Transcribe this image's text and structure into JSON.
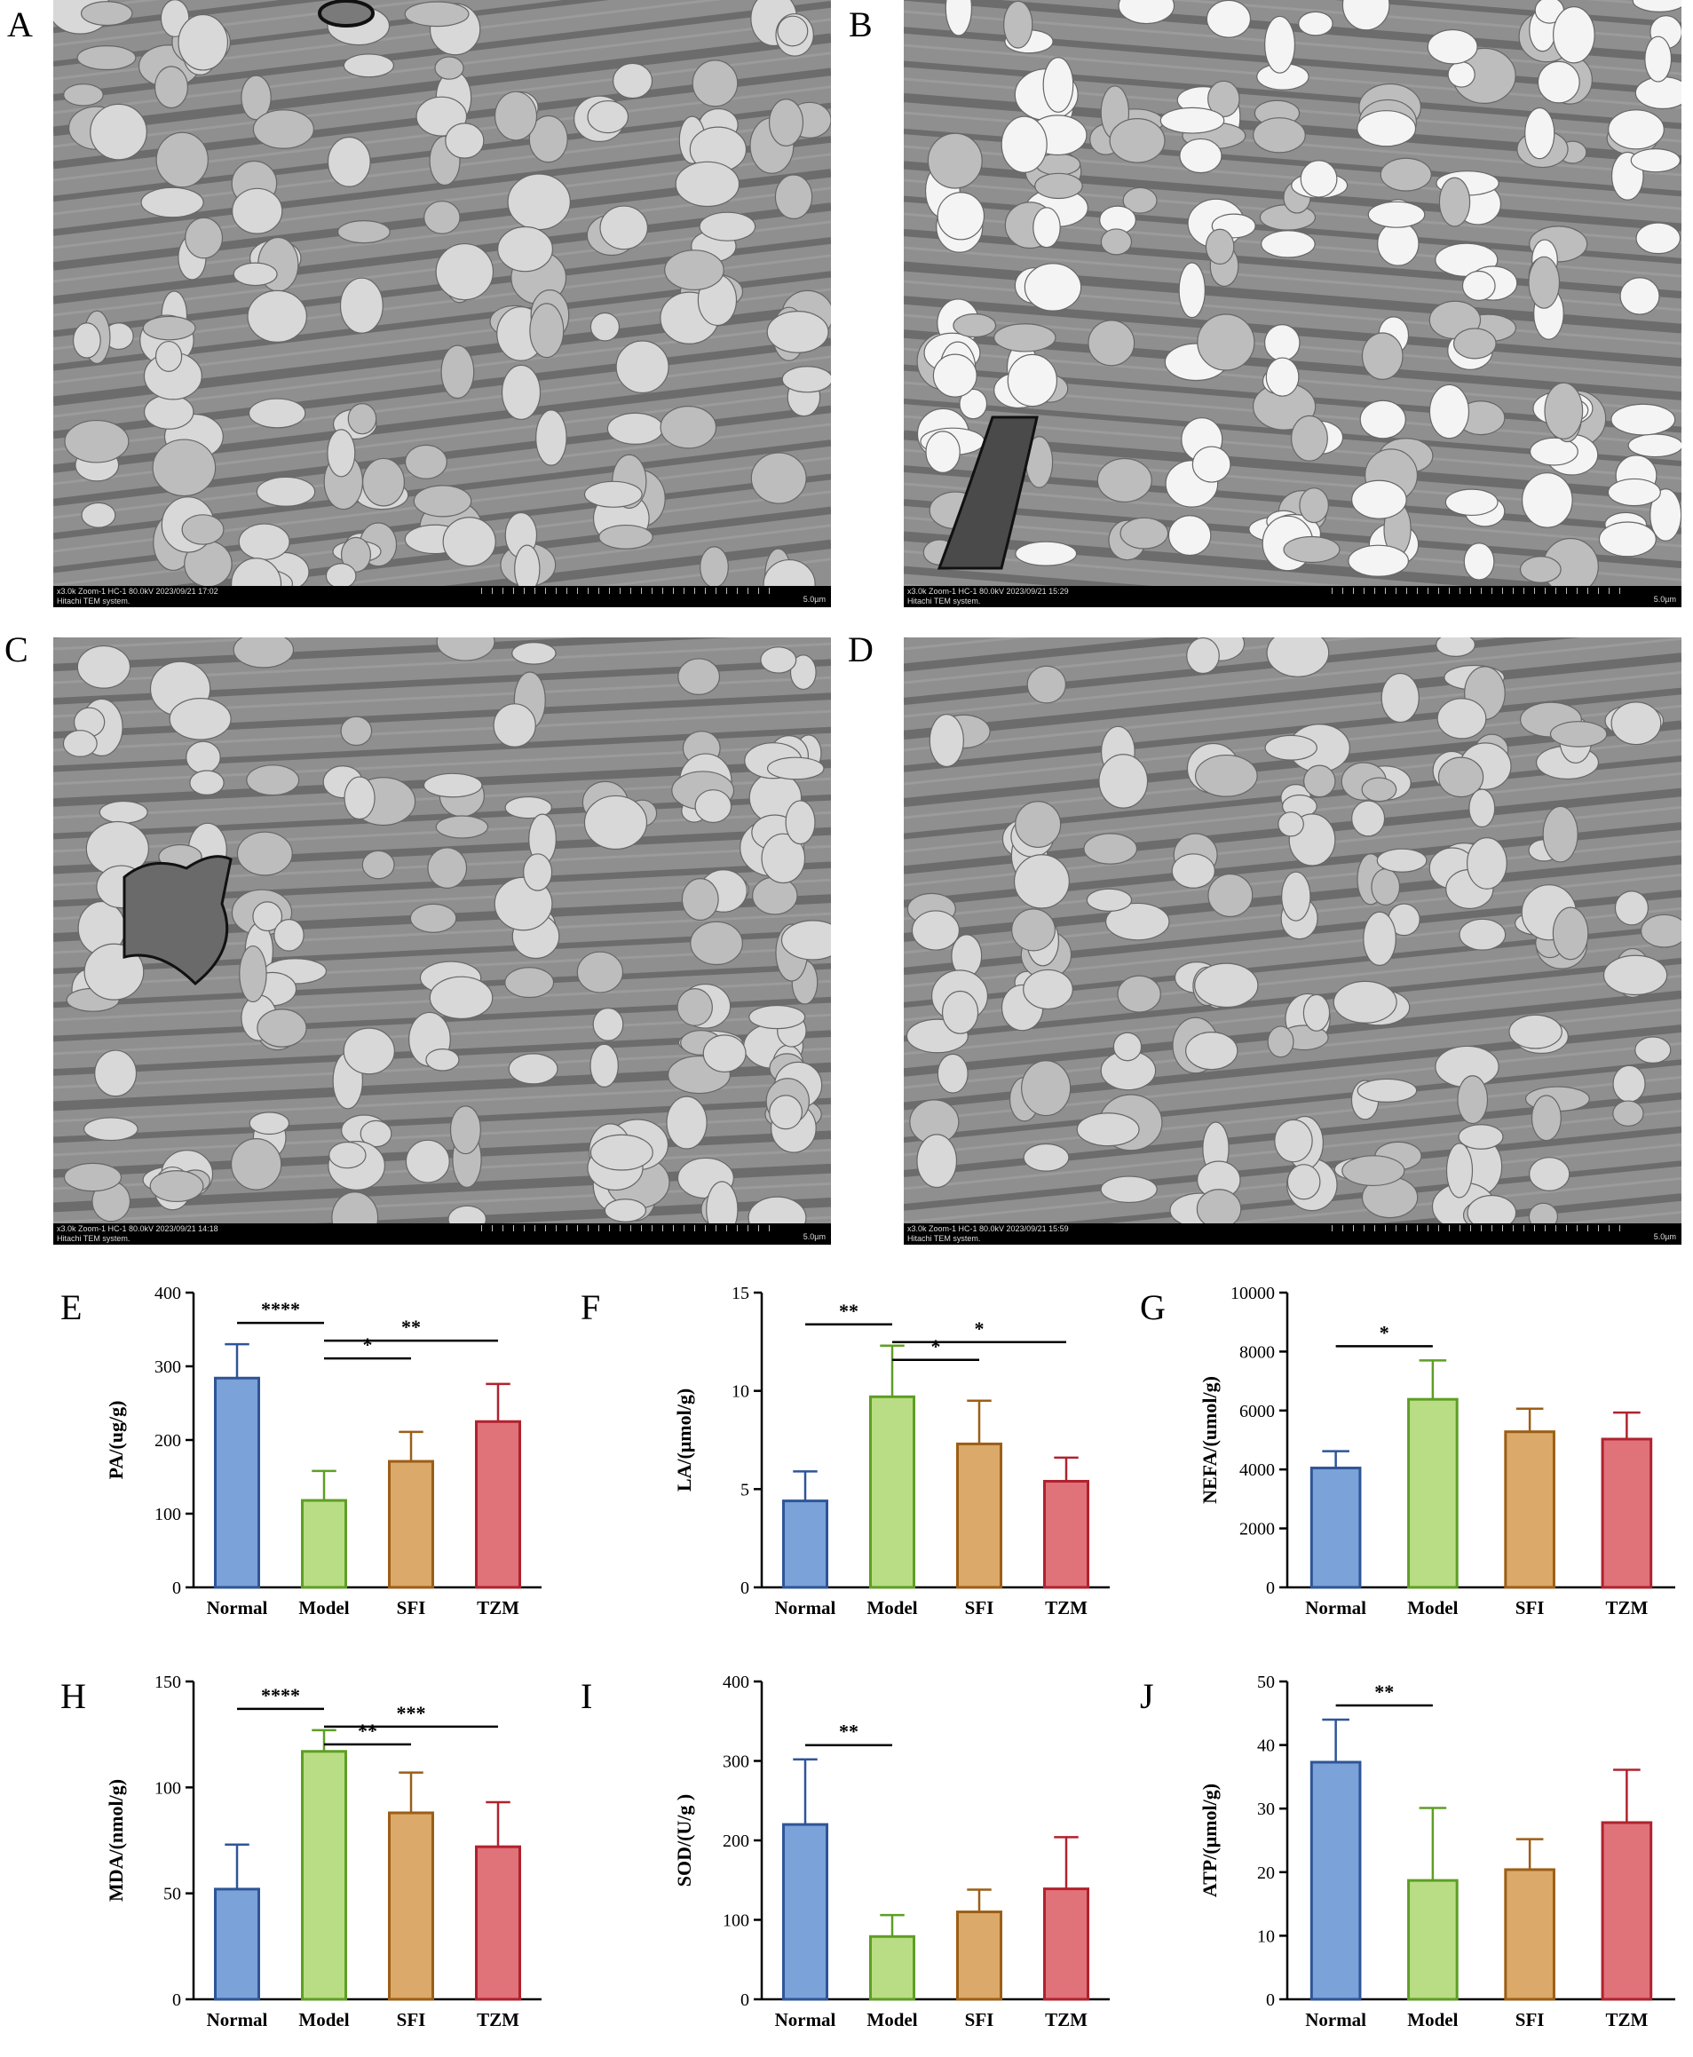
{
  "tem_panels": [
    {
      "letter": "A",
      "info": "x3.0k Zoom-1 HC-1 80.0kV 2023/09/21 17:02",
      "system": "Hitachi TEM system.",
      "scale": "5.0µm"
    },
    {
      "letter": "B",
      "info": "x3.0k Zoom-1 HC-1 80.0kV 2023/09/21 15:29",
      "system": "Hitachi TEM system.",
      "scale": "5.0µm"
    },
    {
      "letter": "C",
      "info": "x3.0k Zoom-1 HC-1 80.0kV 2023/09/21 14:18",
      "system": "Hitachi TEM system.",
      "scale": "5.0µm"
    },
    {
      "letter": "D",
      "info": "x3.0k Zoom-1 HC-1 80.0kV 2023/09/21 15:59",
      "system": "Hitachi TEM system.",
      "scale": "5.0µm"
    }
  ],
  "colors": {
    "Normal": {
      "fill": "#7ba2d9",
      "stroke": "#2f5597"
    },
    "Model": {
      "fill": "#b9dd84",
      "stroke": "#5e9e25"
    },
    "SFI": {
      "fill": "#dba96a",
      "stroke": "#9c5e16"
    },
    "TZM": {
      "fill": "#e0727a",
      "stroke": "#b0222e"
    }
  },
  "chart_data": [
    {
      "letter": "E",
      "type": "bar",
      "ylabel": "PA/(ug/g)",
      "ylim": [
        0,
        400
      ],
      "yticks": [
        0,
        100,
        200,
        300,
        400
      ],
      "categories": [
        "Normal",
        "Model",
        "SFI",
        "TZM"
      ],
      "values": [
        284,
        118,
        171,
        225
      ],
      "errors": [
        46,
        40,
        40,
        51
      ],
      "significance": [
        {
          "from": 0,
          "to": 1,
          "label": "****"
        },
        {
          "from": 1,
          "to": 2,
          "label": "*"
        },
        {
          "from": 1,
          "to": 3,
          "label": "**"
        }
      ]
    },
    {
      "letter": "F",
      "type": "bar",
      "ylabel": "LA/(μmol/g)",
      "ylim": [
        0,
        15
      ],
      "yticks": [
        0,
        5,
        10,
        15
      ],
      "categories": [
        "Normal",
        "Model",
        "SFI",
        "TZM"
      ],
      "values": [
        4.4,
        9.7,
        7.3,
        5.4
      ],
      "errors": [
        1.5,
        2.6,
        2.2,
        1.2
      ],
      "significance": [
        {
          "from": 0,
          "to": 1,
          "label": "**"
        },
        {
          "from": 1,
          "to": 2,
          "label": "*"
        },
        {
          "from": 1,
          "to": 3,
          "label": "*"
        }
      ]
    },
    {
      "letter": "G",
      "type": "bar",
      "ylabel": "NEFA/(umol/g)",
      "ylim": [
        0,
        10000
      ],
      "yticks": [
        0,
        2000,
        4000,
        6000,
        8000,
        10000
      ],
      "categories": [
        "Normal",
        "Model",
        "SFI",
        "TZM"
      ],
      "values": [
        4050,
        6380,
        5280,
        5030
      ],
      "errors": [
        570,
        1320,
        780,
        900
      ],
      "significance": [
        {
          "from": 0,
          "to": 1,
          "label": "*"
        }
      ]
    },
    {
      "letter": "H",
      "type": "bar",
      "ylabel": "MDA/(nmol/g)",
      "ylim": [
        0,
        150
      ],
      "yticks": [
        0,
        50,
        100,
        150
      ],
      "categories": [
        "Normal",
        "Model",
        "SFI",
        "TZM"
      ],
      "values": [
        52,
        117,
        88,
        72
      ],
      "errors": [
        21,
        10,
        19,
        21
      ],
      "significance": [
        {
          "from": 0,
          "to": 1,
          "label": "****"
        },
        {
          "from": 1,
          "to": 2,
          "label": "**"
        },
        {
          "from": 1,
          "to": 3,
          "label": "***"
        }
      ]
    },
    {
      "letter": "I",
      "type": "bar",
      "ylabel": "SOD/(U/g )",
      "ylim": [
        0,
        400
      ],
      "yticks": [
        0,
        100,
        200,
        300,
        400
      ],
      "categories": [
        "Normal",
        "Model",
        "SFI",
        "TZM"
      ],
      "values": [
        220,
        79,
        110,
        139
      ],
      "errors": [
        82,
        27,
        28,
        65
      ],
      "significance": [
        {
          "from": 0,
          "to": 1,
          "label": "**"
        }
      ]
    },
    {
      "letter": "J",
      "type": "bar",
      "ylabel": "ATP/(μmol/g)",
      "ylim": [
        0,
        50
      ],
      "yticks": [
        0,
        10,
        20,
        30,
        40,
        50
      ],
      "categories": [
        "Normal",
        "Model",
        "SFI",
        "TZM"
      ],
      "values": [
        37.3,
        18.7,
        20.4,
        27.8
      ],
      "errors": [
        6.7,
        11.4,
        4.8,
        8.3
      ],
      "significance": [
        {
          "from": 0,
          "to": 1,
          "label": "**"
        }
      ]
    }
  ]
}
